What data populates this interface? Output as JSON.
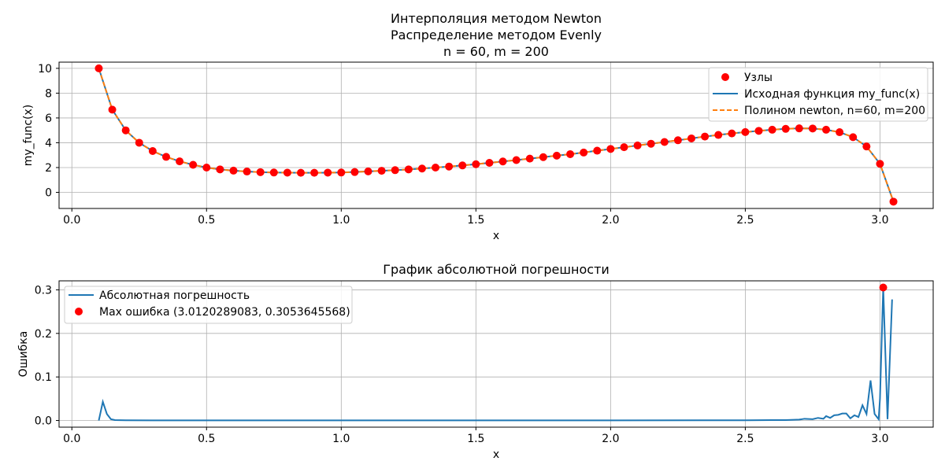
{
  "chart_data": [
    {
      "type": "line",
      "title_lines": [
        "Интерполяция методом Newton",
        "Распределение методом Evenly",
        "n = 60, m = 200"
      ],
      "xlabel": "x",
      "ylabel": "my_func(x)",
      "xlim": [
        -0.0475,
        3.1975
      ],
      "ylim": [
        -1.3,
        10.5
      ],
      "x_ticks": [
        0.0,
        0.5,
        1.0,
        1.5,
        2.0,
        2.5,
        3.0
      ],
      "x_tick_labels": [
        "0.0",
        "0.5",
        "1.0",
        "1.5",
        "2.0",
        "2.5",
        "3.0"
      ],
      "y_ticks": [
        0,
        2,
        4,
        6,
        8,
        10
      ],
      "y_tick_labels": [
        "0",
        "2",
        "4",
        "6",
        "8",
        "10"
      ],
      "grid": true,
      "legend_position": "top-right",
      "nodes_color": "#ff0000",
      "line_color": "#1f77b4",
      "poly_color": "#ff7f0e",
      "series": [
        {
          "name": "Узлы",
          "kind": "scatter",
          "x": [
            0.1,
            0.15,
            0.2,
            0.25,
            0.3,
            0.35,
            0.4,
            0.45,
            0.5,
            0.55,
            0.6,
            0.65,
            0.7,
            0.75,
            0.8,
            0.85,
            0.9,
            0.95,
            1.0,
            1.05,
            1.1,
            1.15,
            1.2,
            1.25,
            1.3,
            1.35,
            1.4,
            1.45,
            1.5,
            1.55,
            1.6,
            1.65,
            1.7,
            1.75,
            1.8,
            1.85,
            1.9,
            1.95,
            2.0,
            2.05,
            2.1,
            2.15,
            2.2,
            2.25,
            2.3,
            2.35,
            2.4,
            2.45,
            2.5,
            2.55,
            2.6,
            2.65,
            2.7,
            2.75,
            2.8,
            2.85,
            2.9,
            2.95,
            3.0,
            3.05
          ],
          "y": [
            10.0,
            6.67,
            5.0,
            4.0,
            3.33,
            2.86,
            2.5,
            2.22,
            2.0,
            1.85,
            1.75,
            1.68,
            1.63,
            1.6,
            1.59,
            1.58,
            1.58,
            1.59,
            1.6,
            1.64,
            1.69,
            1.74,
            1.79,
            1.85,
            1.92,
            2.0,
            2.08,
            2.17,
            2.27,
            2.38,
            2.49,
            2.6,
            2.72,
            2.84,
            2.96,
            3.08,
            3.21,
            3.36,
            3.5,
            3.64,
            3.78,
            3.92,
            4.06,
            4.2,
            4.35,
            4.5,
            4.63,
            4.75,
            4.86,
            4.96,
            5.05,
            5.12,
            5.16,
            5.15,
            5.05,
            4.85,
            4.45,
            3.7,
            2.3,
            -0.75
          ]
        },
        {
          "name": "Исходная функция my_func(x)",
          "kind": "line"
        },
        {
          "name": "Полином newton, n=60, m=200",
          "kind": "line-dashed"
        }
      ]
    },
    {
      "type": "line",
      "title": "График абсолютной погрешности",
      "xlabel": "x",
      "ylabel": "Ошибка",
      "xlim": [
        -0.0475,
        3.1975
      ],
      "ylim": [
        -0.0153,
        0.3207
      ],
      "x_ticks": [
        0.0,
        0.5,
        1.0,
        1.5,
        2.0,
        2.5,
        3.0
      ],
      "x_tick_labels": [
        "0.0",
        "0.5",
        "1.0",
        "1.5",
        "2.0",
        "2.5",
        "3.0"
      ],
      "y_ticks": [
        0.0,
        0.1,
        0.2,
        0.3
      ],
      "y_tick_labels": [
        "0.0",
        "0.1",
        "0.2",
        "0.3"
      ],
      "grid": true,
      "legend_position": "top-left",
      "series": [
        {
          "name": "Абсолютная погрешность",
          "kind": "line",
          "x": [
            0.1,
            0.115,
            0.13,
            0.145,
            0.16,
            0.2,
            0.3,
            0.5,
            1.0,
            1.5,
            2.0,
            2.5,
            2.6,
            2.65,
            2.7,
            2.72,
            2.75,
            2.77,
            2.79,
            2.8,
            2.815,
            2.83,
            2.845,
            2.86,
            2.875,
            2.89,
            2.905,
            2.92,
            2.935,
            2.95,
            2.965,
            2.98,
            2.995,
            3.0,
            3.012,
            3.028,
            3.045
          ],
          "y": [
            0.0,
            0.043,
            0.015,
            0.003,
            0.001,
            0.0005,
            0.0003,
            0.0003,
            0.0003,
            0.0003,
            0.0003,
            0.0005,
            0.001,
            0.001,
            0.002,
            0.004,
            0.003,
            0.006,
            0.004,
            0.01,
            0.006,
            0.012,
            0.013,
            0.016,
            0.016,
            0.005,
            0.012,
            0.008,
            0.035,
            0.015,
            0.092,
            0.015,
            0.003,
            0.05,
            0.3054,
            0.003,
            0.278
          ]
        },
        {
          "name": "Max ошибка (3.0120289083, 0.3053645568)",
          "kind": "scatter",
          "x": [
            3.0120289083
          ],
          "y": [
            0.3053645568
          ]
        }
      ]
    }
  ]
}
